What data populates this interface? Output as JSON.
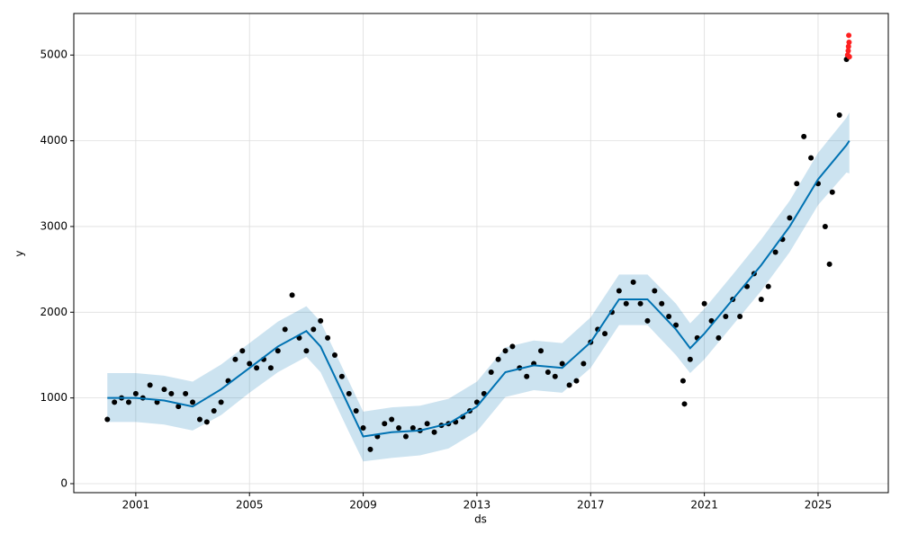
{
  "chart_data": {
    "type": "forecast",
    "xlabel": "ds",
    "ylabel": "y",
    "xlim": [
      1998.82,
      2027.47
    ],
    "ylim": [
      -105,
      5485
    ],
    "xticks": [
      2001,
      2005,
      2009,
      2013,
      2017,
      2021,
      2025
    ],
    "yticks": [
      0,
      1000,
      2000,
      3000,
      4000,
      5000
    ],
    "grid": true,
    "band": {
      "color": "#0072b2",
      "x": [
        2000,
        2001,
        2002,
        2003,
        2004,
        2005,
        2006,
        2007,
        2007.5,
        2008,
        2008.5,
        2009,
        2010,
        2011,
        2012,
        2013,
        2014,
        2015,
        2016,
        2017,
        2018,
        2019,
        2020,
        2020.5,
        2021,
        2022,
        2023,
        2024,
        2025,
        2026,
        2026.1
      ],
      "lower": [
        720,
        720,
        690,
        620,
        800,
        1060,
        1300,
        1480,
        1300,
        950,
        600,
        260,
        300,
        330,
        410,
        610,
        1010,
        1090,
        1060,
        1350,
        1850,
        1850,
        1500,
        1290,
        1450,
        1850,
        2250,
        2700,
        3250,
        3630,
        3620
      ],
      "upper": [
        1290,
        1290,
        1260,
        1190,
        1390,
        1640,
        1890,
        2070,
        1890,
        1540,
        1190,
        840,
        890,
        910,
        990,
        1190,
        1590,
        1670,
        1640,
        1940,
        2440,
        2440,
        2100,
        1870,
        2040,
        2440,
        2850,
        3300,
        3860,
        4270,
        4330
      ]
    },
    "series": [
      {
        "color": "#000000",
        "style": "dots",
        "x": [
          2000.0,
          2000.25,
          2000.5,
          2000.75,
          2001.0,
          2001.25,
          2001.5,
          2001.75,
          2002.0,
          2002.25,
          2002.5,
          2002.75,
          2003.0,
          2003.25,
          2003.5,
          2003.75,
          2004.0,
          2004.25,
          2004.5,
          2004.75,
          2005.0,
          2005.25,
          2005.5,
          2005.75,
          2006.0,
          2006.25,
          2006.5,
          2006.75,
          2007.0,
          2007.25,
          2007.5,
          2007.75,
          2008.0,
          2008.25,
          2008.5,
          2008.75,
          2009.0,
          2009.25,
          2009.5,
          2009.75,
          2010.0,
          2010.25,
          2010.5,
          2010.75,
          2011.0,
          2011.25,
          2011.5,
          2011.75,
          2012.0,
          2012.25,
          2012.5,
          2012.75,
          2013.0,
          2013.25,
          2013.5,
          2013.75,
          2014.0,
          2014.25,
          2014.5,
          2014.75,
          2015.0,
          2015.25,
          2015.5,
          2015.75,
          2016.0,
          2016.25,
          2016.5,
          2016.75,
          2017.0,
          2017.25,
          2017.5,
          2017.75,
          2018.0,
          2018.25,
          2018.5,
          2018.75,
          2019.0,
          2019.25,
          2019.5,
          2019.75,
          2020.0,
          2020.25,
          2020.3,
          2020.5,
          2020.75,
          2021.0,
          2021.25,
          2021.5,
          2021.75,
          2022.0,
          2022.25,
          2022.5,
          2022.75,
          2023.0,
          2023.25,
          2023.5,
          2023.75,
          2024.0,
          2024.25,
          2024.5,
          2024.75,
          2025.0,
          2025.25,
          2025.4,
          2025.5,
          2025.75,
          2026.0
        ],
        "values": [
          750,
          950,
          1000,
          950,
          1050,
          1000,
          1150,
          950,
          1100,
          1050,
          900,
          1050,
          950,
          750,
          720,
          850,
          950,
          1200,
          1450,
          1550,
          1400,
          1350,
          1450,
          1350,
          1550,
          1800,
          2200,
          1700,
          1550,
          1800,
          1900,
          1700,
          1500,
          1250,
          1050,
          850,
          650,
          400,
          550,
          700,
          750,
          650,
          550,
          650,
          620,
          700,
          600,
          680,
          700,
          720,
          780,
          850,
          950,
          1050,
          1300,
          1450,
          1550,
          1600,
          1350,
          1250,
          1400,
          1550,
          1300,
          1250,
          1400,
          1150,
          1200,
          1400,
          1650,
          1800,
          1750,
          2000,
          2250,
          2100,
          2350,
          2100,
          1900,
          2250,
          2100,
          1950,
          1850,
          1200,
          930,
          1450,
          1700,
          2100,
          1900,
          1700,
          1950,
          2150,
          1950,
          2300,
          2450,
          2150,
          2300,
          2700,
          2850,
          3100,
          3500,
          4050,
          3800,
          3500,
          3000,
          2560,
          3400,
          4300,
          4950
        ]
      },
      {
        "color": "#ff2020",
        "style": "dots",
        "x": [
          2026.04,
          2026.06,
          2026.07,
          2026.08,
          2026.09,
          2026.1
        ],
        "values": [
          5000,
          5050,
          5100,
          5230,
          5150,
          4980
        ]
      },
      {
        "color": "#0072b2",
        "style": "line",
        "x": [
          2000,
          2001,
          2002,
          2003,
          2004,
          2005,
          2006,
          2007,
          2007.5,
          2008,
          2008.5,
          2009,
          2010,
          2011,
          2012,
          2013,
          2014,
          2015,
          2016,
          2017,
          2018,
          2019,
          2020,
          2020.5,
          2021,
          2022,
          2023,
          2024,
          2025,
          2026,
          2026.1
        ],
        "values": [
          1000,
          1000,
          970,
          900,
          1100,
          1350,
          1600,
          1780,
          1600,
          1250,
          900,
          550,
          600,
          620,
          700,
          900,
          1300,
          1380,
          1350,
          1650,
          2150,
          2150,
          1800,
          1580,
          1750,
          2150,
          2550,
          3000,
          3550,
          3950,
          4000
        ]
      }
    ]
  }
}
